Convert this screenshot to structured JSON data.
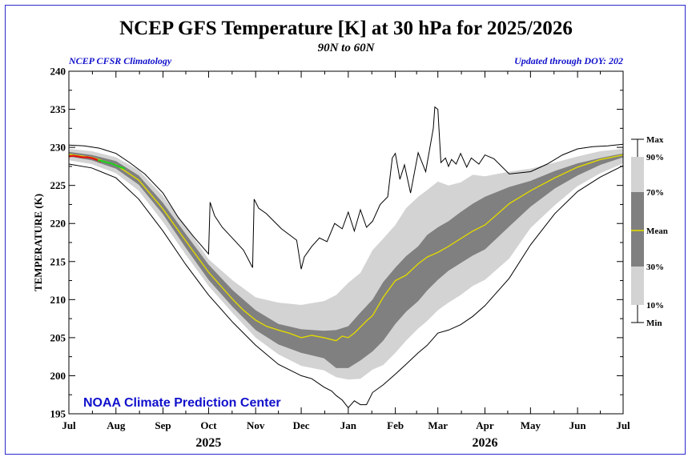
{
  "header": {
    "title": "NCEP GFS Temperature [K] at 30 hPa for 2025/2026",
    "subtitle": "90N to 60N",
    "note_left": "NCEP CFSR Climatology",
    "note_right": "Updated through DOY: 202"
  },
  "watermark": "NOAA Climate Prediction Center",
  "colors": {
    "band_10_90": "#d3d3d3",
    "band_30_70": "#808080",
    "mean": "#e0d800",
    "observed_red": "#e01010",
    "observed_green": "#22cc22",
    "extremes": "#000000",
    "accent_blue": "#1010cc"
  },
  "chart_data": {
    "type": "area",
    "title": "NCEP GFS Temperature [K] at 30 hPa for 2025/2026",
    "subtitle": "90N to 60N",
    "ylabel": "TEMPERATURE (K)",
    "xlabel": "",
    "ylim": [
      195,
      240
    ],
    "yticks": [
      195,
      200,
      205,
      210,
      215,
      220,
      225,
      230,
      235,
      240
    ],
    "xlim": [
      0,
      365
    ],
    "months": [
      {
        "label": "Jul",
        "day": 0
      },
      {
        "label": "Aug",
        "day": 31
      },
      {
        "label": "Sep",
        "day": 62
      },
      {
        "label": "Oct",
        "day": 92
      },
      {
        "label": "Nov",
        "day": 123
      },
      {
        "label": "Dec",
        "day": 153
      },
      {
        "label": "Jan",
        "day": 184
      },
      {
        "label": "Feb",
        "day": 215
      },
      {
        "label": "Mar",
        "day": 243
      },
      {
        "label": "Apr",
        "day": 274
      },
      {
        "label": "May",
        "day": 304
      },
      {
        "label": "Jun",
        "day": 335
      },
      {
        "label": "Jul",
        "day": 365
      }
    ],
    "years": [
      {
        "label": "2025",
        "day": 92
      },
      {
        "label": "2026",
        "day": 274
      }
    ],
    "legend": [
      "Max",
      "90%",
      "70%",
      "Mean",
      "30%",
      "10%",
      "Min"
    ],
    "legend_position": "right",
    "grid": false,
    "series": [
      {
        "name": "Max",
        "x": [
          0,
          10,
          20,
          31,
          40,
          50,
          62,
          72,
          82,
          92,
          93,
          96,
          101,
          108,
          115,
          121,
          122,
          125,
          130,
          140,
          150,
          153,
          155,
          160,
          165,
          170,
          175,
          180,
          184,
          188,
          192,
          196,
          200,
          205,
          210,
          213,
          215,
          218,
          221,
          225,
          230,
          235,
          240,
          241,
          243,
          245,
          248,
          250,
          252,
          255,
          258,
          262,
          265,
          270,
          274,
          280,
          290,
          304,
          315,
          325,
          335,
          345,
          355,
          365
        ],
        "values": [
          230.3,
          230.2,
          229.9,
          229.2,
          228.0,
          226.5,
          224.0,
          220.8,
          218.3,
          216.0,
          222.8,
          221.0,
          219.5,
          218.0,
          216.5,
          214.2,
          223.2,
          222.0,
          221.3,
          219.3,
          217.8,
          214.0,
          215.6,
          217.0,
          218.1,
          217.6,
          220.0,
          219.3,
          221.5,
          219.0,
          221.8,
          219.5,
          220.3,
          222.5,
          223.5,
          228.6,
          229.2,
          225.8,
          227.7,
          224.0,
          229.3,
          226.8,
          232.5,
          235.3,
          235.0,
          228.0,
          228.6,
          227.5,
          228.4,
          227.8,
          229.2,
          227.4,
          228.6,
          227.8,
          229.0,
          228.5,
          226.5,
          226.8,
          227.8,
          229.0,
          229.8,
          230.1,
          230.2,
          230.4
        ]
      },
      {
        "name": "90%",
        "x": [
          0,
          15,
          31,
          46,
          62,
          77,
          92,
          108,
          123,
          138,
          153,
          168,
          176,
          184,
          192,
          200,
          207,
          215,
          222,
          230,
          236,
          243,
          250,
          258,
          266,
          274,
          290,
          304,
          320,
          335,
          350,
          365
        ],
        "values": [
          229.8,
          229.5,
          228.7,
          227.0,
          223.6,
          219.6,
          215.3,
          212.5,
          210.3,
          209.6,
          209.3,
          209.8,
          210.6,
          212.2,
          213.5,
          216.5,
          218.0,
          219.8,
          222.0,
          223.5,
          224.4,
          225.5,
          225.0,
          225.4,
          226.4,
          226.2,
          226.8,
          227.2,
          228.0,
          228.8,
          229.5,
          229.8
        ]
      },
      {
        "name": "70%",
        "x": [
          0,
          15,
          31,
          46,
          62,
          77,
          92,
          108,
          123,
          138,
          153,
          168,
          176,
          184,
          192,
          200,
          207,
          215,
          222,
          230,
          236,
          243,
          250,
          258,
          266,
          274,
          290,
          304,
          320,
          335,
          350,
          365
        ],
        "values": [
          229.4,
          229.0,
          228.2,
          226.3,
          222.7,
          218.6,
          214.6,
          211.2,
          208.6,
          206.8,
          206.1,
          205.9,
          206.0,
          206.5,
          208.3,
          210.0,
          212.3,
          214.2,
          215.7,
          217.0,
          218.5,
          219.5,
          220.3,
          221.5,
          222.6,
          223.5,
          224.8,
          225.6,
          226.9,
          227.9,
          228.6,
          229.2
        ]
      },
      {
        "name": "Mean",
        "x": [
          0,
          15,
          31,
          46,
          62,
          77,
          92,
          108,
          115,
          123,
          130,
          138,
          145,
          153,
          160,
          168,
          176,
          180,
          184,
          188,
          192,
          196,
          200,
          207,
          215,
          222,
          230,
          236,
          243,
          250,
          258,
          266,
          274,
          290,
          304,
          320,
          335,
          350,
          365
        ],
        "values": [
          229.1,
          228.7,
          227.7,
          225.7,
          221.9,
          217.7,
          213.6,
          210.0,
          208.6,
          207.3,
          206.5,
          206.0,
          205.6,
          205.0,
          205.3,
          205.0,
          204.6,
          205.2,
          205.0,
          205.6,
          206.4,
          207.2,
          207.9,
          210.3,
          212.5,
          213.2,
          214.7,
          215.6,
          216.2,
          217.0,
          218.0,
          219.0,
          219.8,
          222.6,
          224.3,
          226.0,
          227.4,
          228.4,
          229.0
        ]
      },
      {
        "name": "30%",
        "x": [
          0,
          15,
          31,
          46,
          62,
          77,
          92,
          108,
          123,
          138,
          153,
          168,
          176,
          184,
          192,
          200,
          207,
          215,
          222,
          230,
          236,
          243,
          250,
          258,
          266,
          274,
          290,
          304,
          320,
          335,
          350,
          365
        ],
        "values": [
          228.8,
          228.3,
          227.2,
          225.1,
          221.2,
          216.8,
          212.6,
          209.0,
          206.0,
          204.1,
          203.0,
          202.3,
          201.0,
          201.0,
          202.0,
          203.2,
          204.6,
          206.8,
          208.4,
          209.8,
          211.2,
          212.6,
          213.8,
          214.8,
          215.8,
          216.6,
          219.6,
          222.2,
          224.6,
          226.3,
          227.7,
          228.7
        ]
      },
      {
        "name": "10%",
        "x": [
          0,
          15,
          31,
          46,
          62,
          77,
          92,
          108,
          123,
          138,
          153,
          168,
          176,
          184,
          192,
          200,
          207,
          215,
          222,
          230,
          236,
          243,
          250,
          258,
          266,
          274,
          290,
          304,
          320,
          335,
          350,
          365
        ],
        "values": [
          228.3,
          227.8,
          226.6,
          224.3,
          220.2,
          215.9,
          211.8,
          208.2,
          205.0,
          202.8,
          201.3,
          200.7,
          199.8,
          199.5,
          199.6,
          200.8,
          201.4,
          203.0,
          204.6,
          206.2,
          207.2,
          208.6,
          209.6,
          210.6,
          211.8,
          212.6,
          215.4,
          219.4,
          222.4,
          224.9,
          226.6,
          227.9
        ]
      },
      {
        "name": "Min",
        "x": [
          0,
          15,
          31,
          46,
          62,
          77,
          92,
          108,
          123,
          138,
          153,
          160,
          168,
          173,
          176,
          180,
          184,
          188,
          192,
          196,
          200,
          207,
          215,
          222,
          230,
          236,
          243,
          250,
          258,
          266,
          274,
          290,
          304,
          320,
          335,
          350,
          365
        ],
        "values": [
          227.8,
          227.3,
          226.0,
          223.2,
          219.0,
          214.6,
          210.6,
          207.0,
          204.0,
          201.5,
          200.0,
          199.6,
          198.5,
          198.0,
          197.4,
          196.8,
          195.8,
          196.7,
          196.2,
          196.2,
          197.8,
          198.8,
          200.2,
          201.5,
          203.0,
          204.0,
          205.6,
          206.0,
          206.7,
          207.8,
          209.2,
          212.8,
          217.2,
          221.3,
          224.2,
          226.1,
          227.6
        ]
      },
      {
        "name": "Observed",
        "x": [
          0,
          3,
          6,
          9,
          12,
          15,
          18,
          21
        ],
        "values": [
          228.8,
          228.9,
          228.8,
          228.7,
          228.7,
          228.6,
          228.4,
          228.1
        ]
      },
      {
        "name": "Observed-recent",
        "x": [
          19,
          22,
          25,
          28,
          31,
          34,
          37
        ],
        "values": [
          228.3,
          228.2,
          228.0,
          227.9,
          227.6,
          227.4,
          227.2
        ]
      }
    ]
  }
}
